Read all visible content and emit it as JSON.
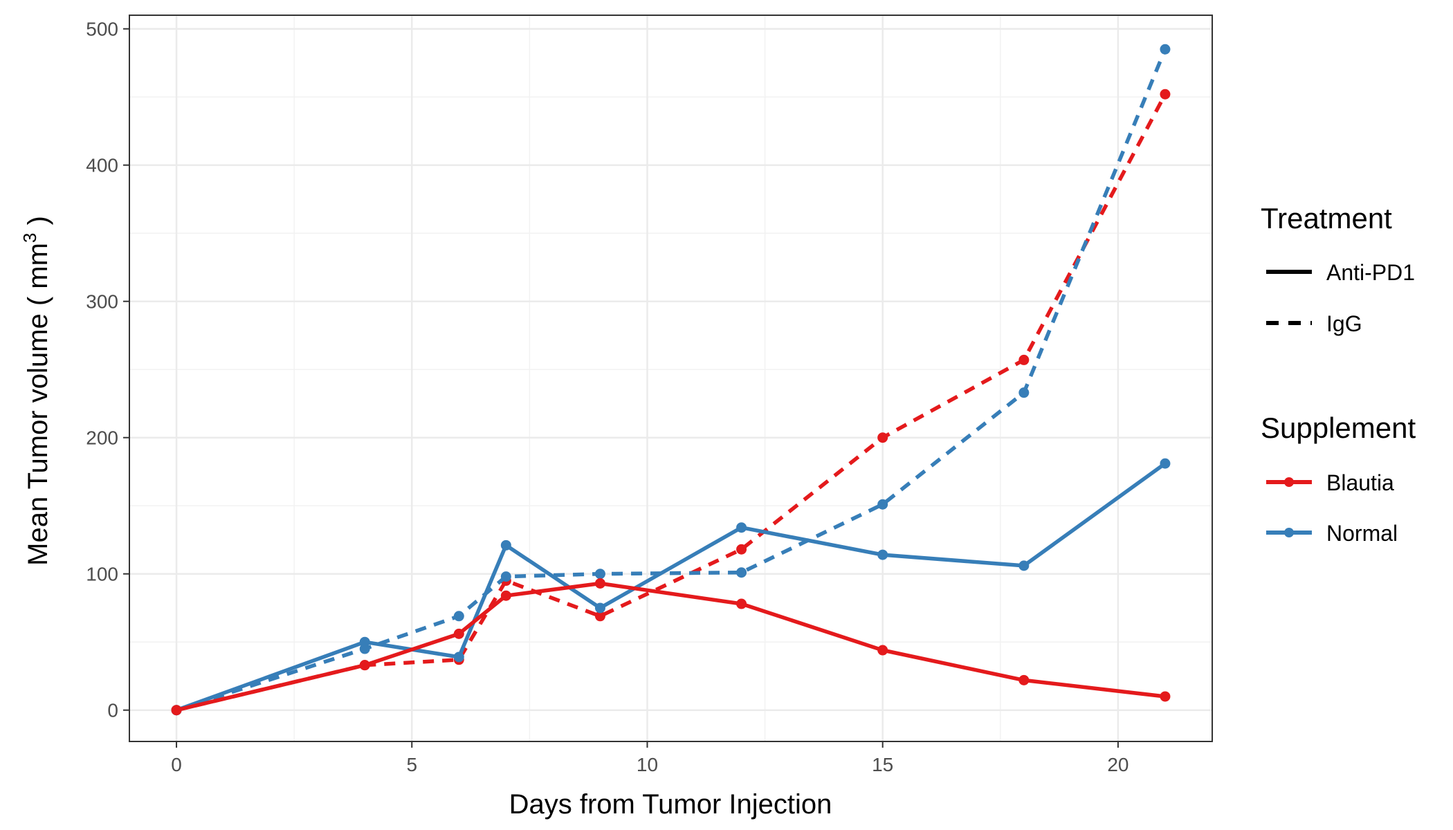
{
  "chart_data": {
    "type": "line",
    "title": "",
    "xlabel": "Days from Tumor Injection",
    "ylabel": {
      "main": "Mean Tumor volume ( mm",
      "superscript": "3",
      "close": " )"
    },
    "xlim": [
      -1,
      22
    ],
    "ylim": [
      -23,
      510
    ],
    "x_ticks": [
      0,
      5,
      10,
      15,
      20
    ],
    "y_ticks": [
      0,
      100,
      200,
      300,
      400,
      500
    ],
    "grid": true,
    "legend_position": "right",
    "legends": [
      {
        "title": "Treatment",
        "items": [
          {
            "label": "Anti-PD1",
            "linestyle": "solid"
          },
          {
            "label": "IgG",
            "linestyle": "dashed"
          }
        ]
      },
      {
        "title": "Supplement",
        "items": [
          {
            "label": "Blautia",
            "color": "#e41a1c"
          },
          {
            "label": "Normal",
            "color": "#377eb8"
          }
        ]
      }
    ],
    "series": [
      {
        "supplement": "Blautia",
        "treatment": "IgG",
        "color": "#e41a1c",
        "linestyle": "dashed",
        "points": [
          [
            0,
            0
          ],
          [
            4,
            33
          ],
          [
            6,
            37
          ],
          [
            7,
            95
          ],
          [
            9,
            69
          ],
          [
            12,
            118
          ],
          [
            15,
            200
          ],
          [
            18,
            257
          ],
          [
            21,
            452
          ]
        ]
      },
      {
        "supplement": "Normal",
        "treatment": "IgG",
        "color": "#377eb8",
        "linestyle": "dashed",
        "points": [
          [
            0,
            0
          ],
          [
            4,
            45
          ],
          [
            6,
            69
          ],
          [
            7,
            98
          ],
          [
            9,
            100
          ],
          [
            12,
            101
          ],
          [
            15,
            151
          ],
          [
            18,
            233
          ],
          [
            21,
            485
          ]
        ]
      },
      {
        "supplement": "Normal",
        "treatment": "Anti-PD1",
        "color": "#377eb8",
        "linestyle": "solid",
        "points": [
          [
            0,
            0
          ],
          [
            4,
            50
          ],
          [
            6,
            39
          ],
          [
            7,
            121
          ],
          [
            9,
            75
          ],
          [
            12,
            134
          ],
          [
            15,
            114
          ],
          [
            18,
            106
          ],
          [
            21,
            181
          ]
        ]
      },
      {
        "supplement": "Blautia",
        "treatment": "Anti-PD1",
        "color": "#e41a1c",
        "linestyle": "solid",
        "points": [
          [
            0,
            0
          ],
          [
            4,
            33
          ],
          [
            6,
            56
          ],
          [
            7,
            84
          ],
          [
            9,
            93
          ],
          [
            12,
            78
          ],
          [
            15,
            44
          ],
          [
            18,
            22
          ],
          [
            21,
            10
          ]
        ]
      }
    ]
  }
}
